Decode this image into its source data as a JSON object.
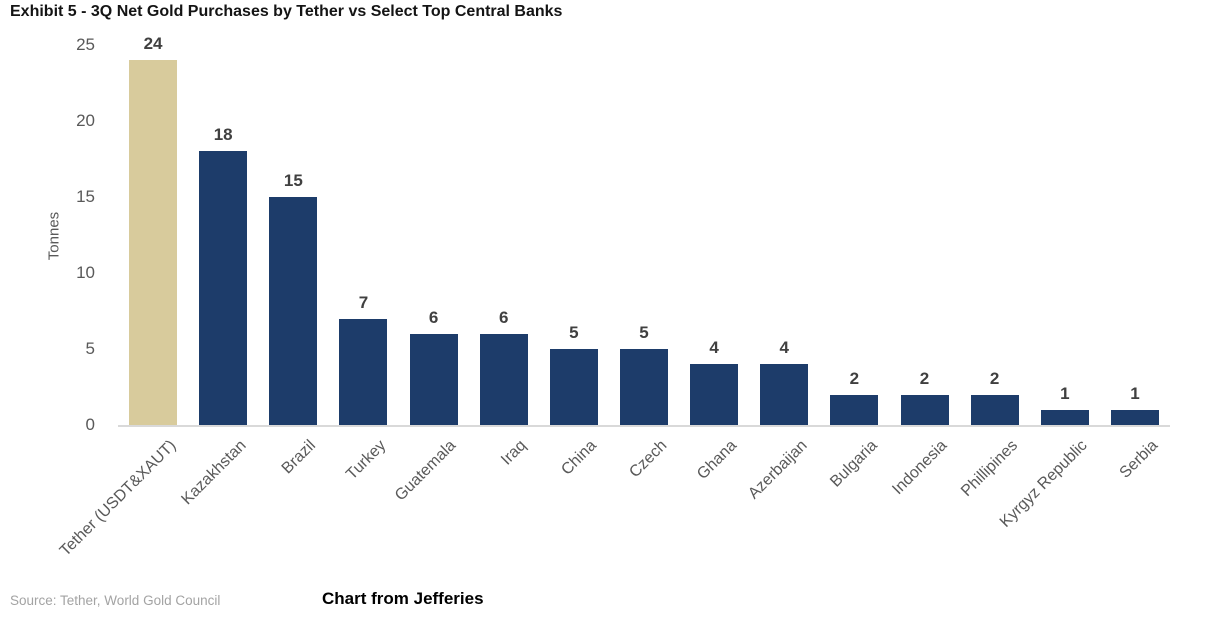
{
  "header": {
    "title": "Exhibit 5 - 3Q Net Gold Purchases by Tether vs Select Top Central Banks"
  },
  "chart_data": {
    "type": "bar",
    "title": "Exhibit 5 - 3Q Net Gold Purchases by Tether vs Select Top Central Banks",
    "xlabel": "",
    "ylabel": "Tonnes",
    "ylim": [
      0,
      25
    ],
    "yticks": [
      0,
      5,
      10,
      15,
      20,
      25
    ],
    "grid": false,
    "legend": "none",
    "categories": [
      "Tether (USDT&XAUT)",
      "Kazakhstan",
      "Brazil",
      "Turkey",
      "Guatemala",
      "Iraq",
      "China",
      "Czech",
      "Ghana",
      "Azerbaijan",
      "Bulgaria",
      "Indonesia",
      "Phillipines",
      "Kyrgyz Republic",
      "Serbia"
    ],
    "values": [
      24,
      18,
      15,
      7,
      6,
      6,
      5,
      5,
      4,
      4,
      2,
      2,
      2,
      1,
      1
    ],
    "bar_color_default": "#1d3c6a",
    "bar_color_highlight": "#d8cb9c",
    "highlight_index": 0,
    "axis_line_color": "#d9d9d9",
    "value_label_color": "#404040",
    "axis_text_color": "#595959"
  },
  "footer": {
    "source": "Source: Tether, World Gold Council",
    "credit": "Chart from Jefferies"
  }
}
